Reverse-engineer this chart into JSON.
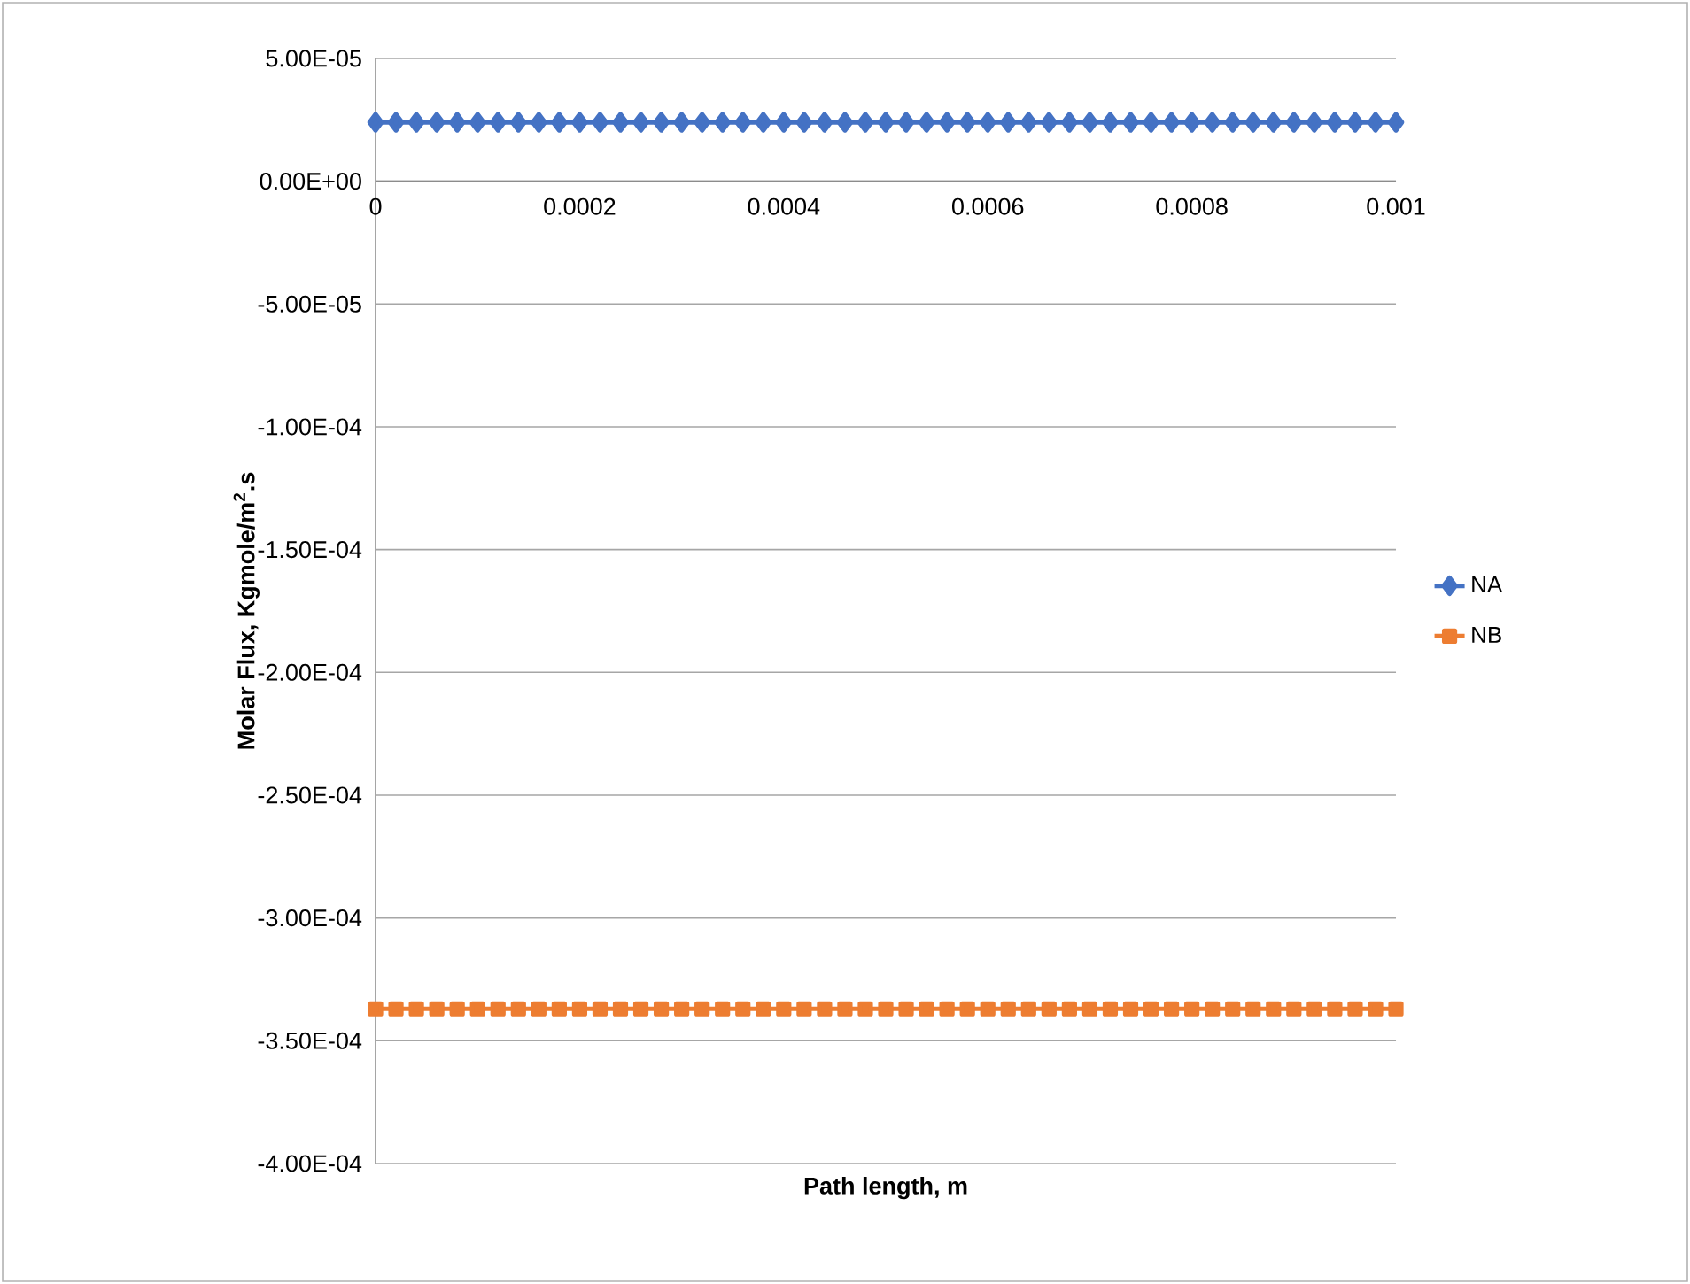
{
  "chart_data": {
    "type": "line",
    "xlabel": "Path length, m",
    "ylabel": "Molar Flux, Kgmole/m$^{2}$.s",
    "x": [
      0,
      2e-05,
      4e-05,
      6e-05,
      8e-05,
      0.0001,
      0.00012,
      0.00014,
      0.00016,
      0.00018,
      0.0002,
      0.00022,
      0.00024,
      0.00026,
      0.00028,
      0.0003,
      0.00032,
      0.00034,
      0.00036,
      0.00038,
      0.0004,
      0.00042,
      0.00044,
      0.00046,
      0.00048,
      0.0005,
      0.00052,
      0.00054,
      0.00056,
      0.00058,
      0.0006,
      0.00062,
      0.00064,
      0.00066,
      0.00068,
      0.0007,
      0.00072,
      0.00074,
      0.00076,
      0.00078,
      0.0008,
      0.00082,
      0.00084,
      0.00086,
      0.00088,
      0.0009,
      0.00092,
      0.00094,
      0.00096,
      0.00098,
      0.001
    ],
    "series": [
      {
        "name": "NA",
        "color": "#4472c4",
        "marker": "diamond",
        "values": [
          2.4e-05,
          2.4e-05,
          2.4e-05,
          2.4e-05,
          2.4e-05,
          2.4e-05,
          2.4e-05,
          2.4e-05,
          2.4e-05,
          2.4e-05,
          2.4e-05,
          2.4e-05,
          2.4e-05,
          2.4e-05,
          2.4e-05,
          2.4e-05,
          2.4e-05,
          2.4e-05,
          2.4e-05,
          2.4e-05,
          2.4e-05,
          2.4e-05,
          2.4e-05,
          2.4e-05,
          2.4e-05,
          2.4e-05,
          2.4e-05,
          2.4e-05,
          2.4e-05,
          2.4e-05,
          2.4e-05,
          2.4e-05,
          2.4e-05,
          2.4e-05,
          2.4e-05,
          2.4e-05,
          2.4e-05,
          2.4e-05,
          2.4e-05,
          2.4e-05,
          2.4e-05,
          2.4e-05,
          2.4e-05,
          2.4e-05,
          2.4e-05,
          2.4e-05,
          2.4e-05,
          2.4e-05,
          2.4e-05,
          2.4e-05,
          2.4e-05
        ]
      },
      {
        "name": "NB",
        "color": "#ed7d31",
        "marker": "square",
        "values": [
          -0.000337,
          -0.000337,
          -0.000337,
          -0.000337,
          -0.000337,
          -0.000337,
          -0.000337,
          -0.000337,
          -0.000337,
          -0.000337,
          -0.000337,
          -0.000337,
          -0.000337,
          -0.000337,
          -0.000337,
          -0.000337,
          -0.000337,
          -0.000337,
          -0.000337,
          -0.000337,
          -0.000337,
          -0.000337,
          -0.000337,
          -0.000337,
          -0.000337,
          -0.000337,
          -0.000337,
          -0.000337,
          -0.000337,
          -0.000337,
          -0.000337,
          -0.000337,
          -0.000337,
          -0.000337,
          -0.000337,
          -0.000337,
          -0.000337,
          -0.000337,
          -0.000337,
          -0.000337,
          -0.000337,
          -0.000337,
          -0.000337,
          -0.000337,
          -0.000337,
          -0.000337,
          -0.000337,
          -0.000337,
          -0.000337,
          -0.000337,
          -0.000337
        ]
      }
    ],
    "xlim": [
      0,
      0.001
    ],
    "xticks": [
      0,
      0.0002,
      0.0004,
      0.0006,
      0.0008,
      0.001
    ],
    "ylim": [
      -0.0004,
      5e-05
    ],
    "yticks": [
      {
        "value": -0.0004,
        "label": "-4.00E-04"
      },
      {
        "value": -0.00035,
        "label": "-3.50E-04"
      },
      {
        "value": -0.0003,
        "label": "-3.00E-04"
      },
      {
        "value": -0.00025,
        "label": "-2.50E-04"
      },
      {
        "value": -0.0002,
        "label": "-2.00E-04"
      },
      {
        "value": -0.00015,
        "label": "-1.50E-04"
      },
      {
        "value": -0.0001,
        "label": "-1.00E-04"
      },
      {
        "value": -5e-05,
        "label": "-5.00E-05"
      },
      {
        "value": 0,
        "label": "0.00E+00"
      },
      {
        "value": 5e-05,
        "label": "5.00E-05"
      }
    ],
    "grid": "y",
    "legend": "right",
    "line_style": "solid"
  }
}
